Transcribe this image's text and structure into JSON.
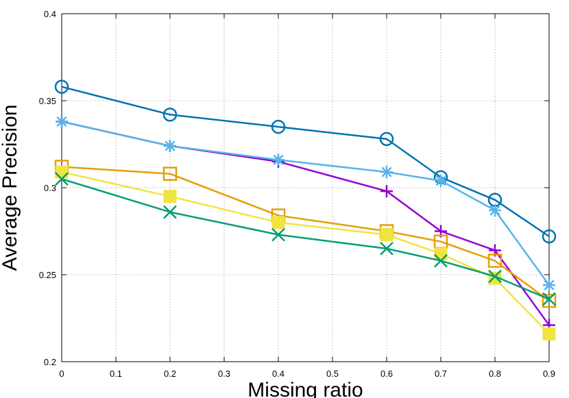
{
  "chart_data": {
    "type": "line",
    "title": "",
    "xlabel": "Missing ratio",
    "ylabel": "Average Precision",
    "xlim": [
      0,
      0.9
    ],
    "ylim": [
      0.2,
      0.4
    ],
    "x_ticks": [
      "0",
      "0.1",
      "0.2",
      "0.3",
      "0.4",
      "0.5",
      "0.6",
      "0.7",
      "0.8",
      "0.9"
    ],
    "y_ticks": [
      "0.2",
      "0.25",
      "0.3",
      "0.35",
      "0.4"
    ],
    "grid": true,
    "legend": "none",
    "series": [
      {
        "color": "#0072b2",
        "marker": "circle",
        "x": [
          0,
          0.2,
          0.4,
          0.6,
          0.7,
          0.8,
          0.9
        ],
        "y": [
          0.358,
          0.342,
          0.335,
          0.328,
          0.306,
          0.293,
          0.272
        ]
      },
      {
        "color": "#9400d3",
        "marker": "plus",
        "x": [
          0,
          0.2,
          0.4,
          0.6,
          0.7,
          0.8,
          0.9
        ],
        "y": [
          0.338,
          0.324,
          0.315,
          0.298,
          0.275,
          0.264,
          0.221
        ]
      },
      {
        "color": "#56b4e9",
        "marker": "asterisk",
        "x": [
          0,
          0.2,
          0.4,
          0.6,
          0.7,
          0.8,
          0.9
        ],
        "y": [
          0.338,
          0.324,
          0.316,
          0.309,
          0.304,
          0.287,
          0.244
        ]
      },
      {
        "color": "#e69f00",
        "marker": "square-open",
        "x": [
          0,
          0.2,
          0.4,
          0.6,
          0.7,
          0.8,
          0.9
        ],
        "y": [
          0.312,
          0.308,
          0.284,
          0.275,
          0.269,
          0.258,
          0.235
        ]
      },
      {
        "color": "#f0e442",
        "marker": "square-filled",
        "x": [
          0,
          0.2,
          0.4,
          0.6,
          0.7,
          0.8,
          0.9
        ],
        "y": [
          0.309,
          0.295,
          0.28,
          0.273,
          0.262,
          0.248,
          0.216
        ]
      },
      {
        "color": "#009e73",
        "marker": "cross",
        "x": [
          0,
          0.2,
          0.4,
          0.6,
          0.7,
          0.8,
          0.9
        ],
        "y": [
          0.305,
          0.286,
          0.273,
          0.265,
          0.258,
          0.249,
          0.236
        ]
      }
    ]
  }
}
